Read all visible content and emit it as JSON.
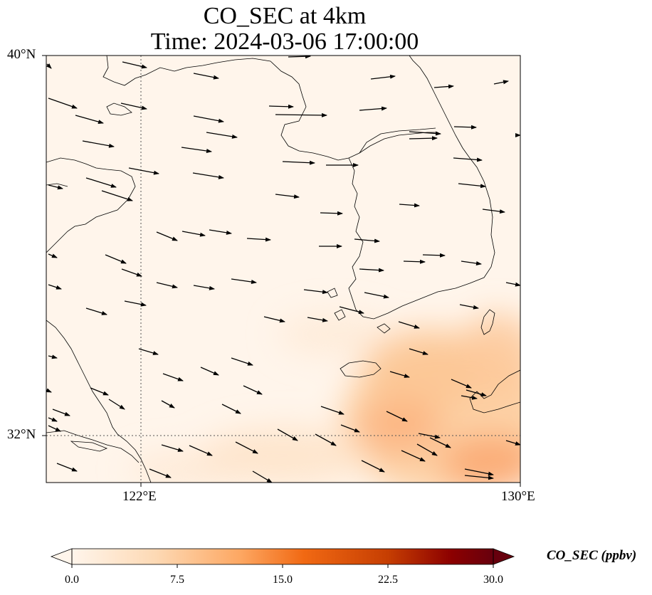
{
  "title_line1": "CO_SEC at 4km",
  "title_line2": "Time: 2024-03-06 17:00:00",
  "axes": {
    "y_ticks": [
      {
        "label": "40°N",
        "value": 40
      },
      {
        "label": "32°N",
        "value": 32
      }
    ],
    "x_ticks": [
      {
        "label": "122°E",
        "value": 122
      },
      {
        "label": "130°E",
        "value": 130
      }
    ],
    "lon_range": [
      120,
      130
    ],
    "lat_range": [
      31,
      40
    ],
    "gridlines": "dotted"
  },
  "colorbar": {
    "label": "CO_SEC (ppbv)",
    "ticks": [
      "0.0",
      "7.5",
      "15.0",
      "22.5",
      "30.0"
    ],
    "range": [
      0,
      30
    ],
    "extend": "both",
    "colors": [
      "#fff5eb",
      "#fdd9b4",
      "#fda762",
      "#f16913",
      "#c63e02",
      "#8c0000",
      "#67000d"
    ]
  },
  "chart_data": {
    "type": "heatmap",
    "field": "CO_SEC at 4km",
    "units": "ppbv",
    "time": "2024-03-06 17:00:00",
    "pattern": "elevated values southeast of Korea and south of Jeju, up to about 11 ppbv; near zero elsewhere",
    "wind_vectors": "arrows pointing east to east-southeast across the domain"
  }
}
